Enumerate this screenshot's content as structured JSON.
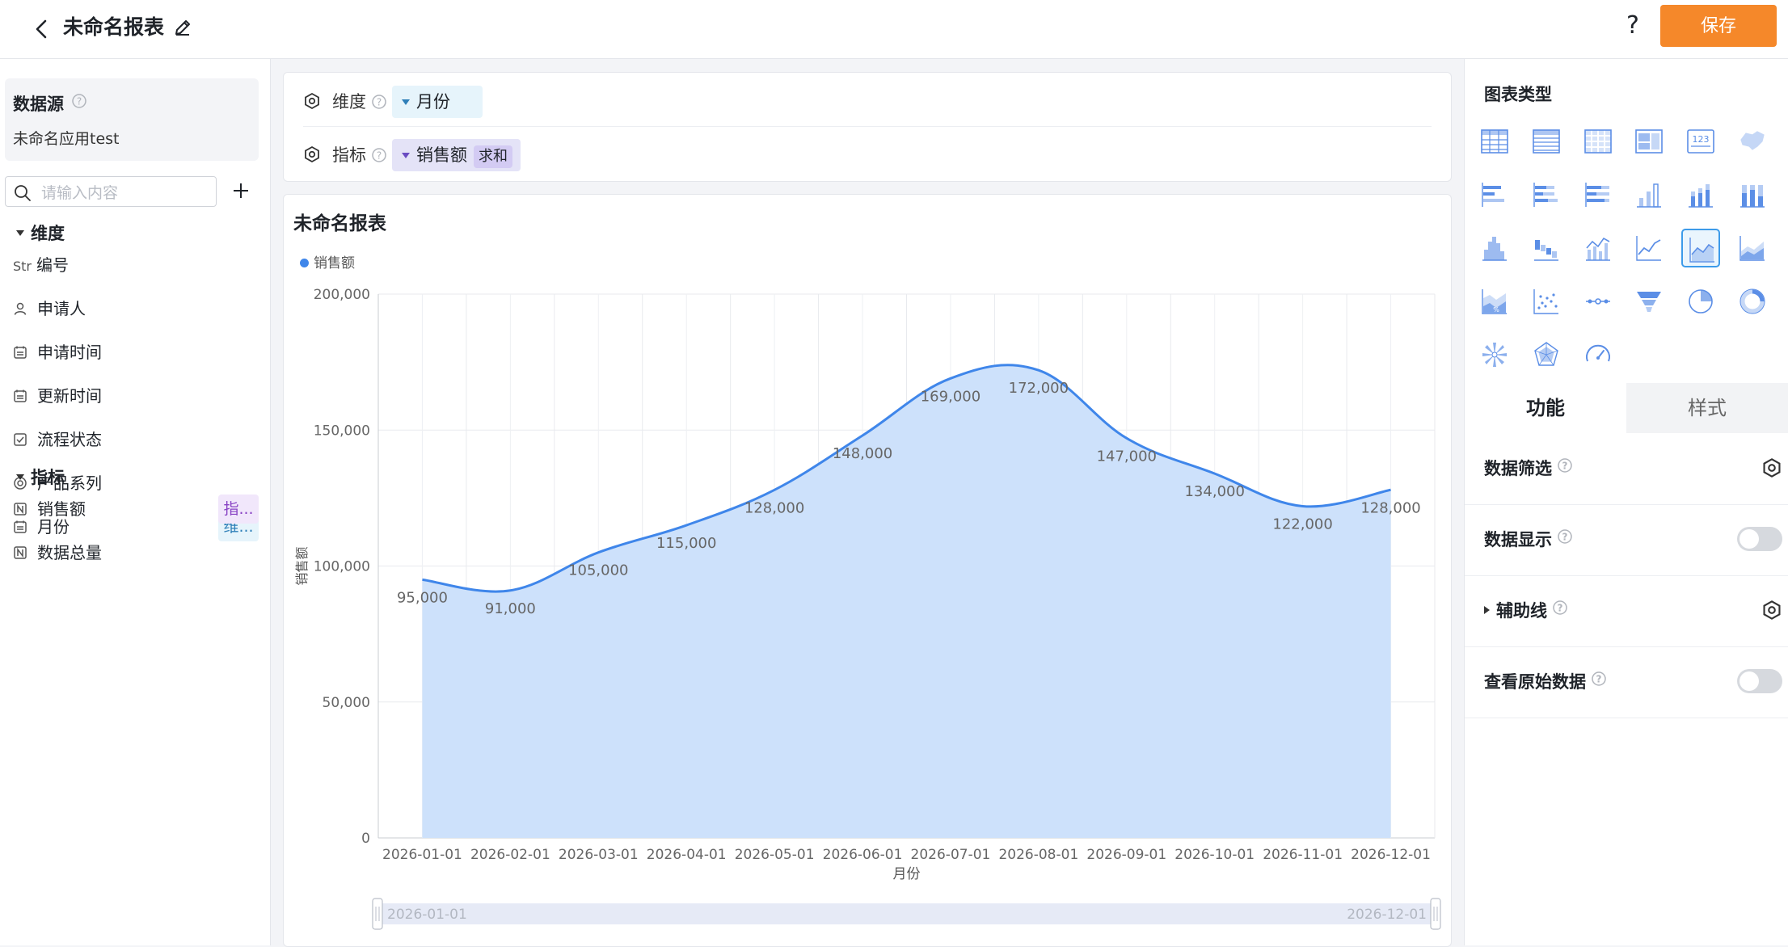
{
  "header": {
    "title": "未命名报表",
    "help": "?",
    "save_label": "保存"
  },
  "left_panel": {
    "datasource_title": "数据源",
    "datasource_name": "未命名应用test",
    "search_placeholder": "请输入内容",
    "dimension_title": "维度",
    "dimension_fields": [
      {
        "label": "编号",
        "icon": "Str",
        "tag": ""
      },
      {
        "label": "申请人",
        "icon": "person-icon",
        "tag": ""
      },
      {
        "label": "申请时间",
        "icon": "calendar-icon",
        "tag": ""
      },
      {
        "label": "更新时间",
        "icon": "calendar-icon",
        "tag": ""
      },
      {
        "label": "流程状态",
        "icon": "checkbox-icon",
        "tag": ""
      },
      {
        "label": "产品系列",
        "icon": "radio-icon",
        "tag": ""
      },
      {
        "label": "月份",
        "icon": "calendar-icon",
        "tag": "维..."
      }
    ],
    "measure_title": "指标",
    "measure_fields": [
      {
        "label": "销售额",
        "icon": "number-icon",
        "tag": "指..."
      },
      {
        "label": "数据总量",
        "icon": "number-icon",
        "tag": ""
      }
    ]
  },
  "config": {
    "dimension_label": "维度",
    "dimension_value": "月份",
    "measure_label": "指标",
    "measure_value": "销售额",
    "measure_agg": "求和"
  },
  "chart_card": {
    "title": "未命名报表",
    "range_start": "2026-01-01",
    "range_end": "2026-12-01"
  },
  "chart_data": {
    "type": "area",
    "title": "未命名报表",
    "xlabel": "月份",
    "ylabel": "销售额",
    "ylim": [
      0,
      200000
    ],
    "yticks": [
      "0",
      "50,000",
      "100,000",
      "150,000",
      "200,000"
    ],
    "categories": [
      "2026-01-01",
      "2026-02-01",
      "2026-03-01",
      "2026-04-01",
      "2026-05-01",
      "2026-06-01",
      "2026-07-01",
      "2026-08-01",
      "2026-09-01",
      "2026-10-01",
      "2026-11-01",
      "2026-12-01"
    ],
    "series": [
      {
        "name": "销售额",
        "color": "#3f86ea",
        "fill": "#cde1fb",
        "values": [
          95000,
          91000,
          105000,
          115000,
          128000,
          148000,
          169000,
          172000,
          147000,
          134000,
          122000,
          128000
        ],
        "labels": [
          "95,000",
          "91,000",
          "105,000",
          "115,000",
          "128,000",
          "148,000",
          "169,000",
          "172,000",
          "147,000",
          "134,000",
          "122,000",
          "128,000"
        ]
      }
    ],
    "legend": "top-left",
    "grid": true
  },
  "right_panel": {
    "chart_types_title": "图表类型",
    "chart_types": [
      "table-icon",
      "detail-table-icon",
      "cross-table-icon",
      "card-icon",
      "indicator-card-icon",
      "map-icon",
      "bar-icon",
      "stacked-bar-icon",
      "percent-bar-icon",
      "column-icon",
      "stacked-column-icon",
      "percent-column-icon",
      "histogram-icon",
      "waterfall-icon",
      "combo-icon",
      "line-icon",
      "area-icon",
      "stacked-area-icon",
      "percent-area-icon",
      "scatter-icon",
      "timeline-icon",
      "funnel-icon",
      "pie-icon",
      "ring-icon",
      "rose-icon",
      "radar-icon",
      "gauge-icon"
    ],
    "selected_chart_type": "area-icon",
    "tab_function": "功能",
    "tab_style": "样式",
    "options": [
      {
        "label": "数据筛选",
        "control": "gear"
      },
      {
        "label": "数据显示",
        "control": "toggle",
        "on": false
      },
      {
        "label": "辅助线",
        "control": "gear",
        "expandable": true
      },
      {
        "label": "查看原始数据",
        "control": "toggle",
        "on": false
      }
    ]
  }
}
